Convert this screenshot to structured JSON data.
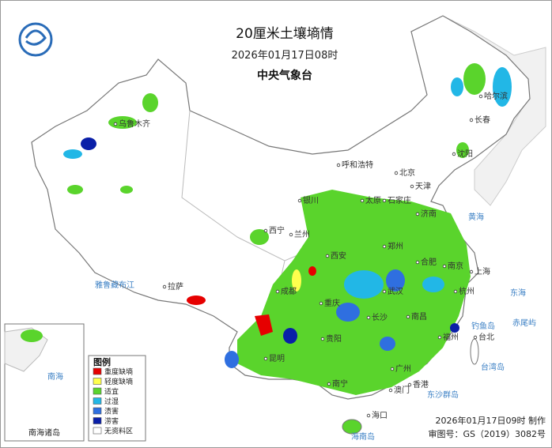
{
  "header": {
    "title": "20厘米土壤墒情",
    "time": "2026年01月17日08时",
    "agency": "中央气象台"
  },
  "legend": {
    "title": "图例",
    "items": [
      {
        "label": "重度缺墒",
        "color": "#e60000"
      },
      {
        "label": "轻度缺墒",
        "color": "#ffff4d"
      },
      {
        "label": "适宜",
        "color": "#5ad42c"
      },
      {
        "label": "过湿",
        "color": "#22b7e6"
      },
      {
        "label": "渍害",
        "color": "#2f6fe0"
      },
      {
        "label": "涝害",
        "color": "#0a1fa8"
      },
      {
        "label": "无资料区",
        "color": "#ffffff"
      }
    ]
  },
  "cities": [
    "乌鲁木齐",
    "哈尔滨",
    "长春",
    "沈阳",
    "呼和浩特",
    "北京",
    "天津",
    "石家庄",
    "太原",
    "银川",
    "济南",
    "西宁",
    "兰州",
    "郑州",
    "西安",
    "合肥",
    "南京",
    "上海",
    "武汉",
    "成都",
    "杭州",
    "拉萨",
    "重庆",
    "长沙",
    "南昌",
    "福州",
    "台北",
    "贵阳",
    "昆明",
    "南宁",
    "广州",
    "香港",
    "澳门",
    "海口"
  ],
  "water": [
    "黄海",
    "东海",
    "雅鲁藏布江",
    "钓鱼岛",
    "赤尾屿",
    "东沙群岛",
    "台湾岛",
    "海南岛",
    "南海"
  ],
  "inset": {
    "label": "南海诸岛"
  },
  "footer": {
    "made": "2026年01月17日09时 制作",
    "approval": "审图号：GS（2019）3082号"
  }
}
